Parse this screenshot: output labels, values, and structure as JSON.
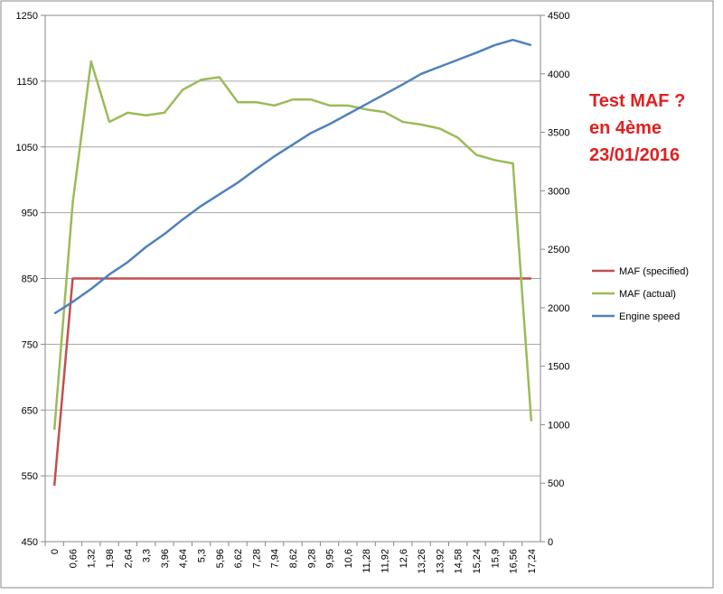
{
  "chart_data": {
    "type": "line",
    "categories": [
      "0",
      "0,66",
      "1,32",
      "1,98",
      "2,64",
      "3,3",
      "3,96",
      "4,64",
      "5,3",
      "5,96",
      "6,62",
      "7,28",
      "7,94",
      "8,62",
      "9,28",
      "9,95",
      "10,6",
      "11,28",
      "11,92",
      "12,6",
      "13,26",
      "13,92",
      "14,58",
      "15,24",
      "15,9",
      "16,56",
      "17,24"
    ],
    "series": [
      {
        "name": "MAF (specified)",
        "color": "#c0504d",
        "values": [
          535,
          850,
          850,
          850,
          850,
          850,
          850,
          850,
          850,
          850,
          850,
          850,
          850,
          850,
          850,
          850,
          850,
          850,
          850,
          850,
          850,
          850,
          850,
          850,
          850,
          850,
          850
        ]
      },
      {
        "name": "MAF (actual)",
        "color": "#9bbb59",
        "values": [
          620,
          965,
          1180,
          1088,
          1102,
          1098,
          1102,
          1137,
          1152,
          1156,
          1118,
          1118,
          1113,
          1122,
          1122,
          1113,
          1113,
          1107,
          1103,
          1088,
          1084,
          1078,
          1064,
          1038,
          1030,
          1025,
          633
        ]
      },
      {
        "name": "Engine speed",
        "color": "#4f81bd",
        "axis": "y2",
        "values": [
          1950,
          2050,
          2160,
          2285,
          2390,
          2520,
          2630,
          2755,
          2870,
          2970,
          3070,
          3185,
          3295,
          3395,
          3495,
          3570,
          3655,
          3740,
          3825,
          3910,
          4000,
          4060,
          4120,
          4180,
          4245,
          4290,
          4245
        ]
      }
    ],
    "ylim": [
      450,
      1250
    ],
    "yticks": [
      450,
      550,
      650,
      750,
      850,
      950,
      1050,
      1150,
      1250
    ],
    "y2lim": [
      0,
      4500
    ],
    "y2ticks": [
      0,
      500,
      1000,
      1500,
      2000,
      2500,
      3000,
      3500,
      4000,
      4500
    ],
    "grid": true,
    "legend": "right",
    "annotation": [
      "Test MAF ?",
      "en 4ème",
      "23/01/2016"
    ],
    "annotation_color": "#e02020"
  }
}
